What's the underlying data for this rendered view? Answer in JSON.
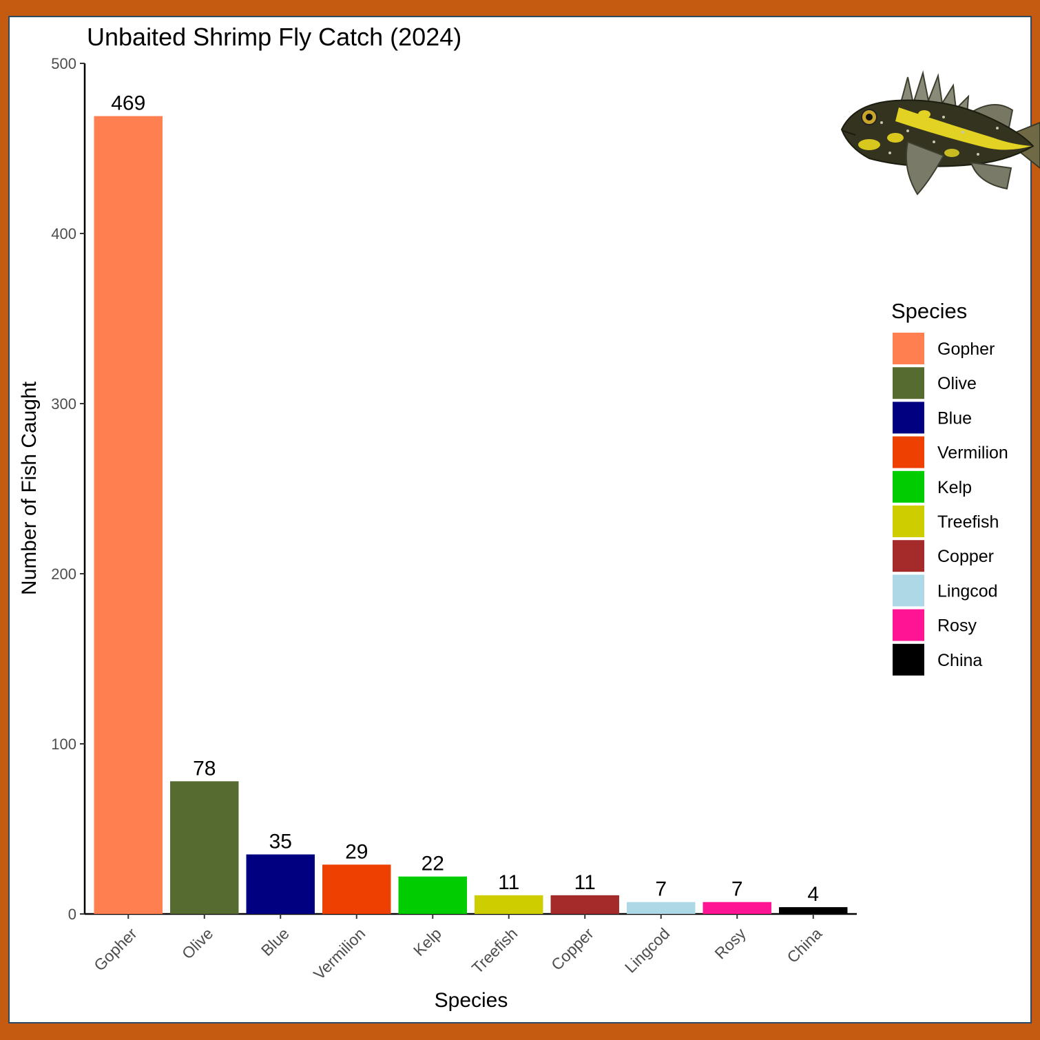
{
  "chart_data": {
    "type": "bar",
    "title": "Unbaited Shrimp Fly Catch (2024)",
    "xlabel": "Species",
    "ylabel": "Number of Fish Caught",
    "ylim": [
      0,
      500
    ],
    "yticks": [
      0,
      100,
      200,
      300,
      400,
      500
    ],
    "categories": [
      "Gopher",
      "Olive",
      "Blue",
      "Vermilion",
      "Kelp",
      "Treefish",
      "Copper",
      "Lingcod",
      "Rosy",
      "China"
    ],
    "values": [
      469,
      78,
      35,
      29,
      22,
      11,
      11,
      7,
      7,
      4
    ],
    "colors": [
      "#ff7f50",
      "#556b2f",
      "#000080",
      "#ee4000",
      "#00cd00",
      "#cdcd00",
      "#a52a2a",
      "#add8e6",
      "#ff1493",
      "#000000"
    ],
    "grid": false,
    "data_labels": true,
    "legend": {
      "title": "Species",
      "placement": "right",
      "entries": [
        "Gopher",
        "Olive",
        "Blue",
        "Vermilion",
        "Kelp",
        "Treefish",
        "Copper",
        "Lingcod",
        "Rosy",
        "China"
      ]
    },
    "decoration": "rockfish-illustration"
  }
}
